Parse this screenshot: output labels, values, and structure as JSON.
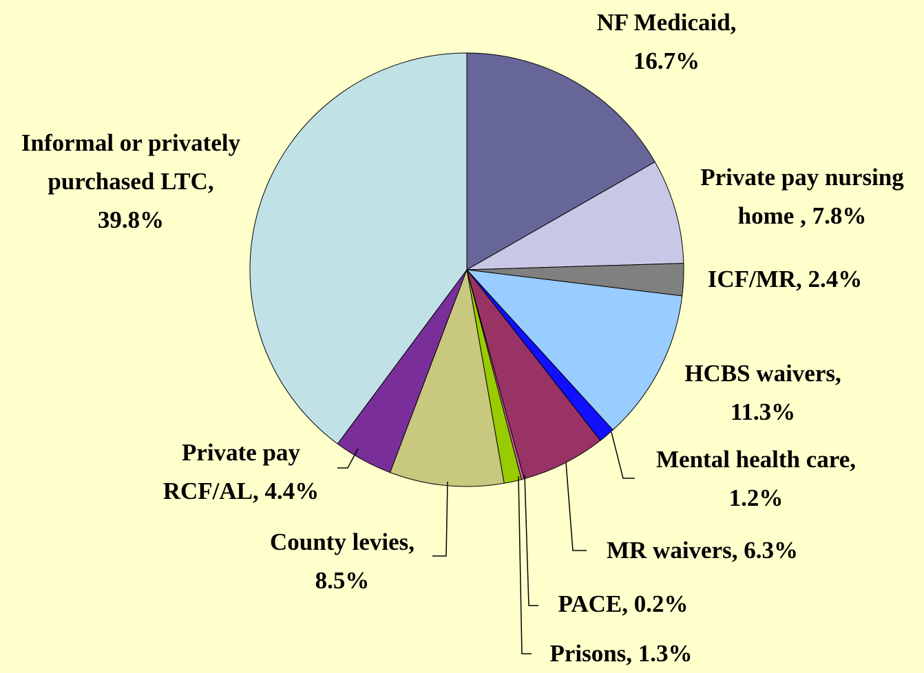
{
  "chart_data": {
    "type": "pie",
    "categories": [
      "NF Medicaid,",
      "Private pay nursing home ,",
      "ICF/MR,",
      "HCBS waivers,",
      "Mental health care,",
      "MR waivers,",
      "PACE,",
      "Prisons,",
      "County levies,",
      "Private pay RCF/AL,",
      "Informal or privately purchased LTC,"
    ],
    "values": [
      16.7,
      7.8,
      2.4,
      11.3,
      1.2,
      6.3,
      0.2,
      1.3,
      8.5,
      4.4,
      39.8
    ],
    "value_labels": [
      "16.7%",
      "7.8%",
      "2.4%",
      "11.3%",
      "1.2%",
      "6.3%",
      "0.2%",
      "1.3%",
      "8.5%",
      "4.4%",
      "39.8%"
    ],
    "colors": [
      "#666699",
      "#c8c8e6",
      "#808080",
      "#99ccff",
      "#1010ff",
      "#993366",
      "#cc6699",
      "#99cc00",
      "#c8c87e",
      "#7a2e9a",
      "#c0e2e6"
    ]
  }
}
